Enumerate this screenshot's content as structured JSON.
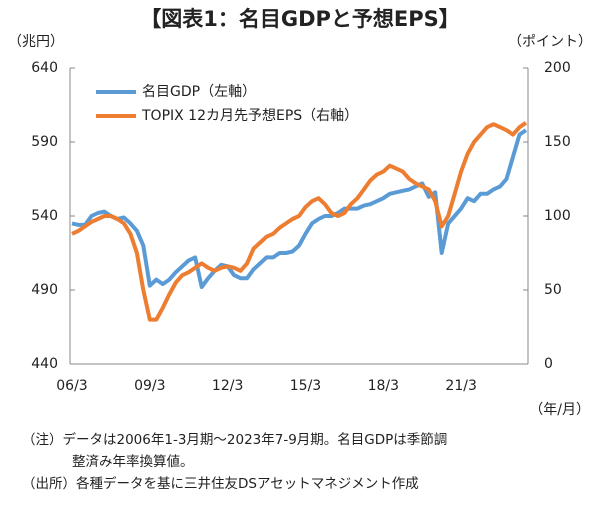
{
  "chart_data": {
    "type": "line",
    "title": "【図表1：名目GDPと予想EPS】",
    "y_label": "（兆円）",
    "y2_label": "（ポイント）",
    "x_label": "（年/月）",
    "categories": [
      "06/3",
      null,
      null,
      null,
      null,
      null,
      null,
      null,
      null,
      null,
      null,
      null,
      "09/3",
      null,
      null,
      null,
      null,
      null,
      null,
      null,
      null,
      null,
      null,
      null,
      "12/3",
      null,
      null,
      null,
      null,
      null,
      null,
      null,
      null,
      null,
      null,
      null,
      "15/3",
      null,
      null,
      null,
      null,
      null,
      null,
      null,
      null,
      null,
      null,
      null,
      "18/3",
      null,
      null,
      null,
      null,
      null,
      null,
      null,
      null,
      null,
      null,
      null,
      "21/3",
      null,
      null,
      null,
      null,
      null,
      null,
      null,
      null,
      null,
      null
    ],
    "series": [
      {
        "name": "名目GDP（左軸）",
        "color": "#5b9bd5",
        "axis": "y",
        "values": [
          535,
          534,
          534,
          540,
          542,
          543,
          540,
          538,
          539,
          535,
          530,
          520,
          493,
          497,
          494,
          497,
          502,
          506,
          510,
          512,
          492,
          498,
          503,
          507,
          506,
          500,
          498,
          498,
          504,
          508,
          512,
          512,
          515,
          515,
          516,
          520,
          528,
          535,
          538,
          540,
          540,
          542,
          545,
          545,
          545,
          547,
          548,
          550,
          552,
          555,
          556,
          557,
          558,
          560,
          562,
          553,
          556,
          515,
          535,
          540,
          545,
          552,
          550,
          555,
          555,
          558,
          560,
          565,
          580,
          595,
          598
        ]
      },
      {
        "name": "TOPIX 12カ月先予想EPS（右軸）",
        "color": "#ed7d31",
        "axis": "y2",
        "values": [
          88,
          90,
          93,
          96,
          98,
          100,
          100,
          98,
          95,
          88,
          75,
          50,
          30,
          30,
          38,
          47,
          55,
          60,
          62,
          65,
          68,
          65,
          63,
          65,
          66,
          65,
          63,
          68,
          78,
          82,
          86,
          88,
          92,
          95,
          98,
          100,
          106,
          110,
          112,
          108,
          102,
          100,
          102,
          108,
          112,
          118,
          124,
          128,
          130,
          134,
          132,
          130,
          125,
          122,
          120,
          118,
          110,
          93,
          100,
          115,
          130,
          142,
          150,
          155,
          160,
          162,
          160,
          158,
          155,
          160,
          163
        ]
      }
    ],
    "ylim": [
      440,
      640
    ],
    "yticks": [
      440,
      490,
      540,
      590,
      640
    ],
    "y2lim": [
      0,
      200
    ],
    "y2ticks": [
      0,
      50,
      100,
      150,
      200
    ],
    "legend": "top-left",
    "notes": [
      "（注）データは2006年1-3月期～2023年7-9月期。名目GDPは季節調",
      "整済み年率換算値。",
      "（出所）各種データを基に三井住友DSアセットマネジメント作成"
    ]
  }
}
